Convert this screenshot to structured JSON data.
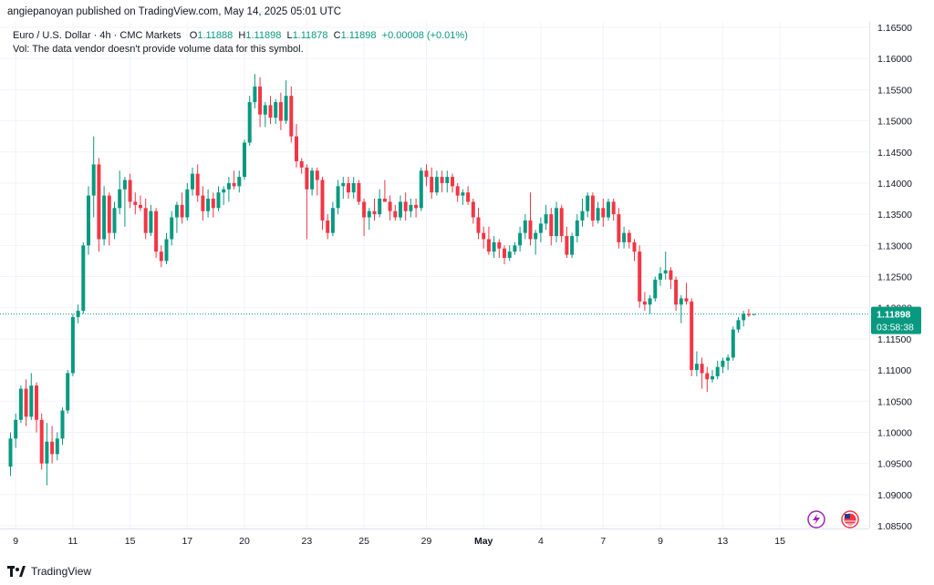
{
  "banner": "angiepanoyan published on TradingView.com, May 14, 2025 05:01 UTC",
  "legend": {
    "symbol": "Euro / U.S. Dollar · 4h · CMC Markets",
    "open_label": "O",
    "open": "1.11888",
    "high_label": "H",
    "high": "1.11898",
    "low_label": "L",
    "low": "1.11878",
    "close_label": "C",
    "close": "1.11898",
    "change": "+0.00008 (+0.01%)",
    "vol_note": "Vol: The data vendor doesn't provide volume data for this symbol."
  },
  "footer": {
    "brand": "TradingView"
  },
  "price_badge": {
    "price": "1.11898",
    "countdown": "03:58:38"
  },
  "colors": {
    "up": "#089981",
    "down": "#f23645",
    "grid": "#f0f3fa",
    "badge": "#089981"
  },
  "chart_data": {
    "type": "candlestick",
    "ylim": [
      1.085,
      1.165
    ],
    "y_ticks": [
      "1.16500",
      "1.16000",
      "1.15500",
      "1.15000",
      "1.14500",
      "1.14000",
      "1.13500",
      "1.13000",
      "1.12500",
      "1.12000",
      "1.11500",
      "1.11000",
      "1.10500",
      "1.10000",
      "1.09500",
      "1.09000",
      "1.08500"
    ],
    "x_ticks": [
      {
        "label": "9",
        "i": 1
      },
      {
        "label": "11",
        "i": 12
      },
      {
        "label": "15",
        "i": 23
      },
      {
        "label": "17",
        "i": 34
      },
      {
        "label": "20",
        "i": 45
      },
      {
        "label": "23",
        "i": 57
      },
      {
        "label": "25",
        "i": 68
      },
      {
        "label": "29",
        "i": 80
      },
      {
        "label": "May",
        "i": 91,
        "bold": true
      },
      {
        "label": "4",
        "i": 102
      },
      {
        "label": "7",
        "i": 114
      },
      {
        "label": "9",
        "i": 125
      },
      {
        "label": "13",
        "i": 137
      },
      {
        "label": "15",
        "i": 148
      }
    ],
    "last_price": 1.11898,
    "candles": [
      [
        1.0945,
        1.1,
        1.093,
        1.099
      ],
      [
        1.099,
        1.103,
        1.0975,
        1.102
      ],
      [
        1.102,
        1.1075,
        1.1015,
        1.107
      ],
      [
        1.107,
        1.1085,
        1.101,
        1.1025
      ],
      [
        1.1025,
        1.1095,
        1.102,
        1.1075
      ],
      [
        1.1075,
        1.108,
        1.1,
        1.102
      ],
      [
        1.102,
        1.103,
        1.094,
        1.095
      ],
      [
        1.095,
        1.1015,
        1.0915,
        1.0985
      ],
      [
        1.0985,
        1.101,
        1.095,
        1.0965
      ],
      [
        1.0965,
        1.1,
        1.0955,
        1.099
      ],
      [
        1.099,
        1.104,
        1.098,
        1.1035
      ],
      [
        1.1035,
        1.11,
        1.103,
        1.1095
      ],
      [
        1.1095,
        1.119,
        1.109,
        1.1185
      ],
      [
        1.1185,
        1.1205,
        1.1175,
        1.1195
      ],
      [
        1.1195,
        1.1305,
        1.119,
        1.13
      ],
      [
        1.13,
        1.1395,
        1.1285,
        1.138
      ],
      [
        1.138,
        1.1475,
        1.1345,
        1.143
      ],
      [
        1.143,
        1.144,
        1.129,
        1.131
      ],
      [
        1.131,
        1.1395,
        1.13,
        1.138
      ],
      [
        1.138,
        1.1385,
        1.13,
        1.132
      ],
      [
        1.132,
        1.137,
        1.131,
        1.136
      ],
      [
        1.136,
        1.142,
        1.135,
        1.139
      ],
      [
        1.139,
        1.141,
        1.133,
        1.1405
      ],
      [
        1.1405,
        1.1415,
        1.136,
        1.137
      ],
      [
        1.137,
        1.1385,
        1.135,
        1.1365
      ],
      [
        1.1365,
        1.138,
        1.1355,
        1.136
      ],
      [
        1.136,
        1.1375,
        1.131,
        1.132
      ],
      [
        1.132,
        1.1365,
        1.1315,
        1.1355
      ],
      [
        1.1355,
        1.136,
        1.128,
        1.129
      ],
      [
        1.129,
        1.13,
        1.1265,
        1.1275
      ],
      [
        1.1275,
        1.132,
        1.127,
        1.131
      ],
      [
        1.131,
        1.1355,
        1.13,
        1.1345
      ],
      [
        1.1345,
        1.137,
        1.132,
        1.1365
      ],
      [
        1.1365,
        1.1385,
        1.1335,
        1.1345
      ],
      [
        1.1345,
        1.14,
        1.134,
        1.139
      ],
      [
        1.139,
        1.1425,
        1.138,
        1.1415
      ],
      [
        1.1415,
        1.143,
        1.137,
        1.138
      ],
      [
        1.138,
        1.1395,
        1.134,
        1.1355
      ],
      [
        1.1355,
        1.139,
        1.1345,
        1.1375
      ],
      [
        1.1375,
        1.1385,
        1.1345,
        1.136
      ],
      [
        1.136,
        1.1395,
        1.1355,
        1.1385
      ],
      [
        1.1385,
        1.1395,
        1.1365,
        1.139
      ],
      [
        1.139,
        1.141,
        1.137,
        1.14
      ],
      [
        1.14,
        1.142,
        1.139,
        1.1395
      ],
      [
        1.1395,
        1.142,
        1.1385,
        1.141
      ],
      [
        1.141,
        1.147,
        1.1405,
        1.1465
      ],
      [
        1.1465,
        1.154,
        1.146,
        1.153
      ],
      [
        1.153,
        1.1575,
        1.152,
        1.1555
      ],
      [
        1.1555,
        1.157,
        1.149,
        1.151
      ],
      [
        1.151,
        1.153,
        1.149,
        1.1525
      ],
      [
        1.1525,
        1.154,
        1.1495,
        1.1505
      ],
      [
        1.1505,
        1.1535,
        1.1495,
        1.153
      ],
      [
        1.153,
        1.1545,
        1.1485,
        1.15
      ],
      [
        1.15,
        1.1565,
        1.1495,
        1.154
      ],
      [
        1.154,
        1.1555,
        1.1465,
        1.1475
      ],
      [
        1.1475,
        1.1495,
        1.1425,
        1.1435
      ],
      [
        1.1435,
        1.144,
        1.1415,
        1.1425
      ],
      [
        1.1425,
        1.143,
        1.131,
        1.139
      ],
      [
        1.139,
        1.1425,
        1.138,
        1.142
      ],
      [
        1.142,
        1.1425,
        1.138,
        1.1405
      ],
      [
        1.1405,
        1.141,
        1.1325,
        1.134
      ],
      [
        1.134,
        1.135,
        1.131,
        1.132
      ],
      [
        1.132,
        1.137,
        1.1315,
        1.136
      ],
      [
        1.136,
        1.1405,
        1.135,
        1.1395
      ],
      [
        1.1395,
        1.141,
        1.1375,
        1.14
      ],
      [
        1.14,
        1.141,
        1.1375,
        1.1385
      ],
      [
        1.1385,
        1.141,
        1.1375,
        1.14
      ],
      [
        1.14,
        1.1405,
        1.1365,
        1.137
      ],
      [
        1.137,
        1.1375,
        1.1315,
        1.1345
      ],
      [
        1.1345,
        1.136,
        1.1325,
        1.1355
      ],
      [
        1.1355,
        1.1375,
        1.134,
        1.135
      ],
      [
        1.135,
        1.139,
        1.1345,
        1.1375
      ],
      [
        1.1375,
        1.1405,
        1.137,
        1.137
      ],
      [
        1.137,
        1.138,
        1.134,
        1.1355
      ],
      [
        1.1355,
        1.1365,
        1.134,
        1.1345
      ],
      [
        1.1345,
        1.138,
        1.134,
        1.137
      ],
      [
        1.137,
        1.1385,
        1.134,
        1.1355
      ],
      [
        1.1355,
        1.1375,
        1.1345,
        1.1365
      ],
      [
        1.1365,
        1.1375,
        1.1345,
        1.136
      ],
      [
        1.136,
        1.1425,
        1.1355,
        1.142
      ],
      [
        1.142,
        1.143,
        1.1395,
        1.141
      ],
      [
        1.141,
        1.1425,
        1.1375,
        1.1385
      ],
      [
        1.1385,
        1.142,
        1.138,
        1.141
      ],
      [
        1.141,
        1.142,
        1.1385,
        1.14
      ],
      [
        1.14,
        1.142,
        1.1385,
        1.141
      ],
      [
        1.141,
        1.1415,
        1.1385,
        1.1395
      ],
      [
        1.1395,
        1.14,
        1.137,
        1.138
      ],
      [
        1.138,
        1.139,
        1.1365,
        1.1385
      ],
      [
        1.1385,
        1.1395,
        1.1365,
        1.137
      ],
      [
        1.137,
        1.1375,
        1.1335,
        1.1345
      ],
      [
        1.1345,
        1.136,
        1.131,
        1.132
      ],
      [
        1.132,
        1.133,
        1.1295,
        1.131
      ],
      [
        1.131,
        1.133,
        1.1285,
        1.129
      ],
      [
        1.129,
        1.1315,
        1.128,
        1.1305
      ],
      [
        1.1305,
        1.131,
        1.128,
        1.1295
      ],
      [
        1.1295,
        1.13,
        1.127,
        1.128
      ],
      [
        1.128,
        1.13,
        1.1275,
        1.129
      ],
      [
        1.129,
        1.1305,
        1.1285,
        1.13
      ],
      [
        1.13,
        1.133,
        1.129,
        1.132
      ],
      [
        1.132,
        1.135,
        1.131,
        1.134
      ],
      [
        1.134,
        1.1385,
        1.13,
        1.131
      ],
      [
        1.131,
        1.1325,
        1.1285,
        1.132
      ],
      [
        1.132,
        1.1345,
        1.1305,
        1.1335
      ],
      [
        1.1335,
        1.1365,
        1.1325,
        1.135
      ],
      [
        1.135,
        1.136,
        1.13,
        1.1315
      ],
      [
        1.1315,
        1.137,
        1.1305,
        1.136
      ],
      [
        1.136,
        1.1365,
        1.1305,
        1.1315
      ],
      [
        1.1315,
        1.133,
        1.128,
        1.1285
      ],
      [
        1.1285,
        1.132,
        1.128,
        1.1315
      ],
      [
        1.1315,
        1.135,
        1.1305,
        1.134
      ],
      [
        1.134,
        1.1375,
        1.133,
        1.1355
      ],
      [
        1.1355,
        1.1385,
        1.1345,
        1.138
      ],
      [
        1.138,
        1.1385,
        1.133,
        1.134
      ],
      [
        1.134,
        1.137,
        1.1335,
        1.136
      ],
      [
        1.136,
        1.1375,
        1.133,
        1.1345
      ],
      [
        1.1345,
        1.1375,
        1.134,
        1.137
      ],
      [
        1.137,
        1.1375,
        1.134,
        1.135
      ],
      [
        1.135,
        1.136,
        1.1295,
        1.1305
      ],
      [
        1.1305,
        1.133,
        1.1295,
        1.132
      ],
      [
        1.132,
        1.1325,
        1.1295,
        1.1305
      ],
      [
        1.1305,
        1.131,
        1.1275,
        1.129
      ],
      [
        1.129,
        1.13,
        1.12,
        1.121
      ],
      [
        1.121,
        1.1225,
        1.1195,
        1.1205
      ],
      [
        1.1205,
        1.122,
        1.119,
        1.1215
      ],
      [
        1.1215,
        1.125,
        1.121,
        1.1245
      ],
      [
        1.1245,
        1.1265,
        1.1235,
        1.1255
      ],
      [
        1.1255,
        1.129,
        1.1245,
        1.126
      ],
      [
        1.126,
        1.1265,
        1.123,
        1.1245
      ],
      [
        1.1245,
        1.125,
        1.1195,
        1.1205
      ],
      [
        1.1205,
        1.122,
        1.1175,
        1.1215
      ],
      [
        1.1215,
        1.124,
        1.1205,
        1.121
      ],
      [
        1.121,
        1.1215,
        1.109,
        1.11
      ],
      [
        1.11,
        1.113,
        1.109,
        1.111
      ],
      [
        1.111,
        1.112,
        1.107,
        1.1095
      ],
      [
        1.1095,
        1.1105,
        1.1065,
        1.1085
      ],
      [
        1.1085,
        1.11,
        1.108,
        1.109
      ],
      [
        1.109,
        1.1115,
        1.1085,
        1.1105
      ],
      [
        1.1105,
        1.112,
        1.1095,
        1.1115
      ],
      [
        1.1115,
        1.1125,
        1.11,
        1.112
      ],
      [
        1.112,
        1.117,
        1.1115,
        1.1165
      ],
      [
        1.1165,
        1.1185,
        1.116,
        1.118
      ],
      [
        1.118,
        1.1195,
        1.117,
        1.119
      ],
      [
        1.119,
        1.1198,
        1.1185,
        1.1188
      ],
      [
        1.11888,
        1.11898,
        1.11878,
        1.11898
      ]
    ]
  }
}
